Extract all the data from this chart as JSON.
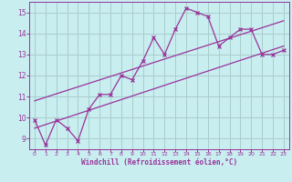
{
  "xlabel": "Windchill (Refroidissement éolien,°C)",
  "bg_color": "#c8eef0",
  "line_color": "#993399",
  "grid_color": "#aacccc",
  "xlim": [
    -0.5,
    23.5
  ],
  "ylim": [
    8.5,
    15.5
  ],
  "yticks": [
    9,
    10,
    11,
    12,
    13,
    14,
    15
  ],
  "xticks": [
    0,
    1,
    2,
    3,
    4,
    5,
    6,
    7,
    8,
    9,
    10,
    11,
    12,
    13,
    14,
    15,
    16,
    17,
    18,
    19,
    20,
    21,
    22,
    23
  ],
  "data_x": [
    0,
    1,
    2,
    3,
    4,
    5,
    6,
    7,
    8,
    9,
    10,
    11,
    12,
    13,
    14,
    15,
    16,
    17,
    18,
    19,
    20,
    21,
    22,
    23
  ],
  "data_y": [
    9.9,
    8.7,
    9.9,
    9.5,
    8.9,
    10.4,
    11.1,
    11.1,
    12.0,
    11.8,
    12.7,
    13.8,
    13.0,
    14.2,
    15.2,
    15.0,
    14.8,
    13.4,
    13.8,
    14.2,
    14.2,
    13.0,
    13.0,
    13.2
  ],
  "trend1_x": [
    0,
    23
  ],
  "trend1_y": [
    9.5,
    13.4
  ],
  "trend2_x": [
    0,
    23
  ],
  "trend2_y": [
    10.8,
    14.6
  ]
}
